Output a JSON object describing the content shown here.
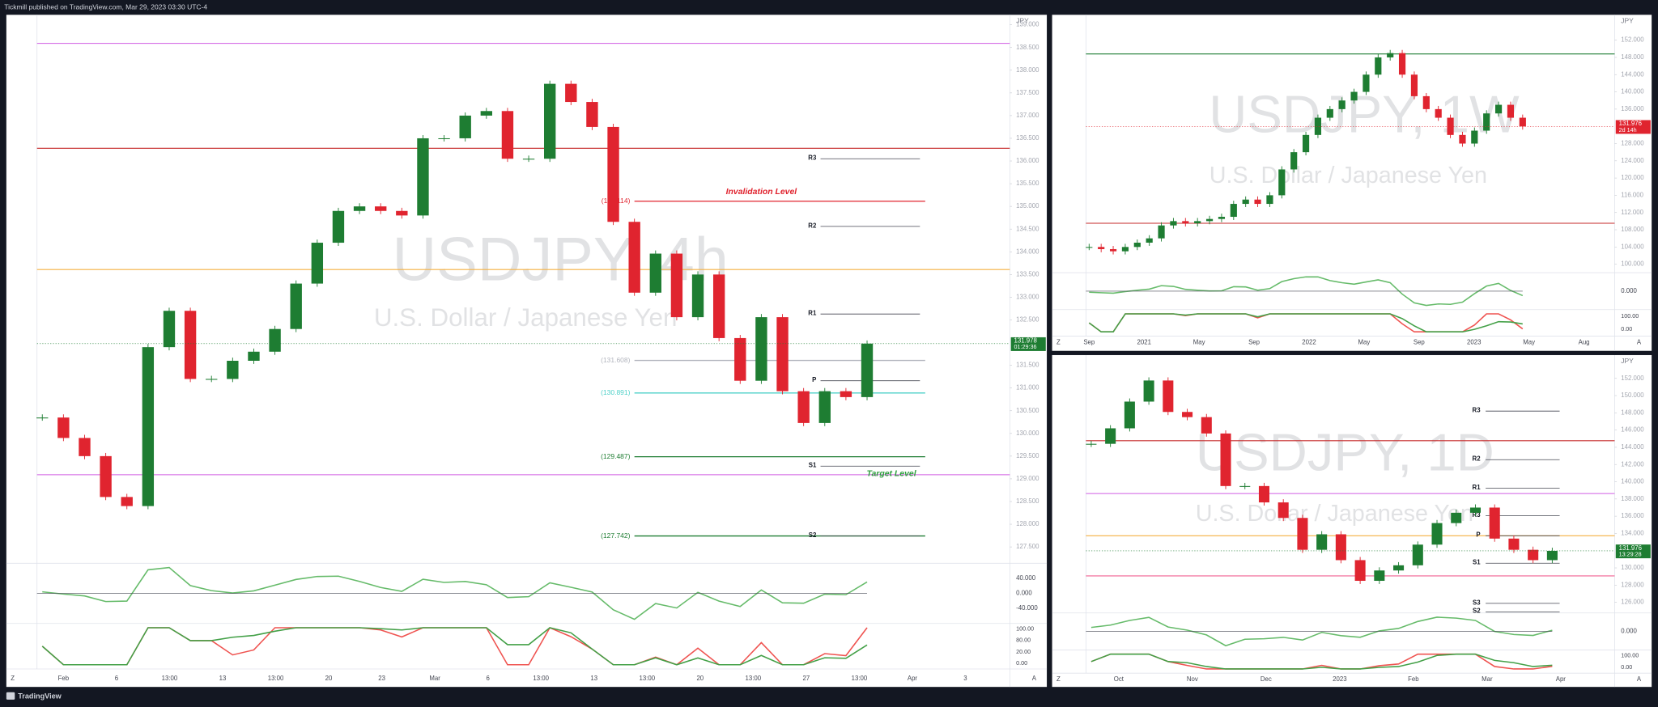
{
  "header": {
    "publisher": "Tickmill published on TradingView.com, Mar 29, 2023 03:30 UTC-4"
  },
  "footer": {
    "brand": "TradingView",
    "left_button": "Z",
    "right_button": "A"
  },
  "chart_data": [
    {
      "type": "candlestick",
      "title": "USDJPY, 4h",
      "subtitle": "U.S. Dollar / Japanese Yen",
      "currency": "JPY",
      "up_color": "#1e7d32",
      "down_color": "#e0242f",
      "closes": [
        130.35,
        129.9,
        129.5,
        128.6,
        128.4,
        131.9,
        132.7,
        131.2,
        131.2,
        131.6,
        131.8,
        132.3,
        133.3,
        134.2,
        134.9,
        135.0,
        134.9,
        134.8,
        136.5,
        136.5,
        137.0,
        137.1,
        136.05,
        136.05,
        137.7,
        137.3,
        136.75,
        134.66,
        133.1,
        133.96,
        132.56,
        133.5,
        132.1,
        131.16,
        132.56,
        130.93,
        130.23,
        130.93,
        130.8,
        131.978
      ],
      "ylim": [
        127.14,
        139.22
      ],
      "yticks": [
        {
          "value": 139,
          "label": "139.000"
        },
        {
          "value": 138.5,
          "label": "138.500"
        },
        {
          "value": 138,
          "label": "138.000"
        },
        {
          "value": 137.5,
          "label": "137.500"
        },
        {
          "value": 137,
          "label": "137.000"
        },
        {
          "value": 136.5,
          "label": "136.500"
        },
        {
          "value": 136,
          "label": "136.000"
        },
        {
          "value": 135.5,
          "label": "135.500"
        },
        {
          "value": 135,
          "label": "135.000"
        },
        {
          "value": 134.5,
          "label": "134.500"
        },
        {
          "value": 134,
          "label": "134.000"
        },
        {
          "value": 133.5,
          "label": "133.500"
        },
        {
          "value": 133,
          "label": "133.000"
        },
        {
          "value": 132.5,
          "label": "132.500"
        },
        {
          "value": 131.5,
          "label": "131.500"
        },
        {
          "value": 131,
          "label": "131.000"
        },
        {
          "value": 130.5,
          "label": "130.500"
        },
        {
          "value": 130,
          "label": "130.000"
        },
        {
          "value": 129.5,
          "label": "129.500"
        },
        {
          "value": 129,
          "label": "129.000"
        },
        {
          "value": 128.5,
          "label": "128.500"
        },
        {
          "value": 128,
          "label": "128.000"
        },
        {
          "value": 127.5,
          "label": "127.500"
        }
      ],
      "time_labels": [
        "Feb",
        "6",
        "13:00",
        "13",
        "13:00",
        "20",
        "23",
        "Mar",
        "6",
        "13:00",
        "13",
        "13:00",
        "20",
        "13:00",
        "27",
        "13:00",
        "Apr",
        "3"
      ],
      "last_price": {
        "value": 131.978,
        "label": "131.978"
      },
      "last_price_color": "#1e7d32",
      "countdown": "01:29:36",
      "levels": [
        {
          "value": 135.114,
          "label": "(135.114)",
          "color": "#e0242f"
        },
        {
          "value": 131.608,
          "label": "(131.608)",
          "color": "#b2b5be"
        },
        {
          "value": 130.891,
          "label": "(130.891)",
          "color": "#4dd0c8"
        },
        {
          "value": 129.487,
          "label": "(129.487)",
          "color": "#1e7d32"
        },
        {
          "value": 127.742,
          "label": "(127.742)",
          "color": "#1e7d32"
        }
      ],
      "pivots": [
        {
          "value": 136.05,
          "label": "R3"
        },
        {
          "value": 134.56,
          "label": "R2"
        },
        {
          "value": 132.63,
          "label": "R1"
        },
        {
          "value": 131.16,
          "label": "P"
        },
        {
          "value": 129.28,
          "label": "S1"
        },
        {
          "value": 127.74,
          "label": "S2"
        }
      ],
      "lines": [
        {
          "value": 138.59,
          "color": "#d05ce3"
        },
        {
          "value": 136.28,
          "color": "#c62828"
        },
        {
          "value": 133.61,
          "color": "#f5b041"
        },
        {
          "value": 129.09,
          "color": "#d05ce3"
        }
      ],
      "annotations": [
        {
          "text": "Invalidation Level",
          "color": "#e0242f",
          "value": 135.114
        },
        {
          "text": "Target Level",
          "color": "#2e9e3e",
          "value": 128.9
        }
      ],
      "indicator1_labels": [
        "40.000",
        "0.000",
        "-40.000"
      ],
      "indicator2_labels": [
        "100.00",
        "80.00",
        "20.00",
        "0.00"
      ]
    },
    {
      "type": "candlestick",
      "title": "USDJPY, 1W",
      "subtitle": "U.S. Dollar / Japanese Yen",
      "currency": "JPY",
      "up_color": "#1e7d32",
      "down_color": "#e0242f",
      "closes": [
        104,
        103.5,
        103,
        104,
        105,
        106,
        109,
        110,
        109.5,
        110,
        110.5,
        111,
        114,
        115,
        114,
        116,
        122,
        126,
        130,
        134,
        136,
        138,
        140,
        144,
        148,
        149,
        144,
        139,
        136,
        134,
        130,
        128,
        131,
        135,
        137,
        134,
        131.976
      ],
      "ylim": [
        98.04,
        157.89
      ],
      "yticks": [
        {
          "value": 152,
          "label": "152.000"
        },
        {
          "value": 148,
          "label": "148.000"
        },
        {
          "value": 144,
          "label": "144.000"
        },
        {
          "value": 140,
          "label": "140.000"
        },
        {
          "value": 136,
          "label": "136.000"
        },
        {
          "value": 128,
          "label": "128.000"
        },
        {
          "value": 124,
          "label": "124.000"
        },
        {
          "value": 120,
          "label": "120.000"
        },
        {
          "value": 116,
          "label": "116.000"
        },
        {
          "value": 112,
          "label": "112.000"
        },
        {
          "value": 108,
          "label": "108.000"
        },
        {
          "value": 104,
          "label": "104.000"
        },
        {
          "value": 100,
          "label": "100.000"
        }
      ],
      "time_labels": [
        "Sep",
        "2021",
        "May",
        "Sep",
        "2022",
        "May",
        "Sep",
        "2023",
        "May",
        "Aug"
      ],
      "last_price": {
        "value": 131.976,
        "label": "131.976"
      },
      "last_price_color": "#e0242f",
      "countdown": "2d 14h",
      "levels": [],
      "pivots": [],
      "lines": [
        {
          "value": 148.8,
          "color": "#1e7d32"
        },
        {
          "value": 109.5,
          "color": "#c62828"
        }
      ],
      "annotations": [],
      "indicator1_labels": [
        "0.000"
      ],
      "indicator2_labels": [
        "100.00",
        "0.00"
      ]
    },
    {
      "type": "candlestick",
      "title": "USDJPY, 1D",
      "subtitle": "U.S. Dollar / Japanese Yen",
      "currency": "JPY",
      "up_color": "#1e7d32",
      "down_color": "#e0242f",
      "closes": [
        144.4,
        146.2,
        149.3,
        151.75,
        148.1,
        147.5,
        145.6,
        139.5,
        139.5,
        137.6,
        135.8,
        132.1,
        133.9,
        130.9,
        128.5,
        129.7,
        130.3,
        132.7,
        135.2,
        136.4,
        137.0,
        133.4,
        132.1,
        130.9,
        131.976
      ],
      "ylim": [
        124.77,
        154.7
      ],
      "yticks": [
        {
          "value": 152,
          "label": "152.000"
        },
        {
          "value": 150,
          "label": "150.000"
        },
        {
          "value": 148,
          "label": "148.000"
        },
        {
          "value": 146,
          "label": "146.000"
        },
        {
          "value": 144,
          "label": "144.000"
        },
        {
          "value": 142,
          "label": "142.000"
        },
        {
          "value": 140,
          "label": "140.000"
        },
        {
          "value": 138,
          "label": "138.000"
        },
        {
          "value": 136,
          "label": "136.000"
        },
        {
          "value": 134,
          "label": "134.000"
        },
        {
          "value": 130,
          "label": "130.000"
        },
        {
          "value": 128,
          "label": "128.000"
        },
        {
          "value": 126,
          "label": "126.000"
        }
      ],
      "time_labels": [
        "Oct",
        "Nov",
        "Dec",
        "2023",
        "Feb",
        "Mar",
        "Apr"
      ],
      "last_price": {
        "value": 131.976,
        "label": "131.976"
      },
      "last_price_color": "#1e7d32",
      "countdown": "13:29:28",
      "levels": [],
      "pivots": [
        {
          "value": 148.2,
          "label": "R3"
        },
        {
          "value": 142.56,
          "label": "R2"
        },
        {
          "value": 139.25,
          "label": "R1"
        },
        {
          "value": 136.06,
          "label": "R3"
        },
        {
          "value": 133.73,
          "label": "P"
        },
        {
          "value": 130.54,
          "label": "S1"
        },
        {
          "value": 125.88,
          "label": "S3"
        },
        {
          "value": 124.9,
          "label": "S2"
        }
      ],
      "lines": [
        {
          "value": 144.76,
          "color": "#c62828"
        },
        {
          "value": 138.63,
          "color": "#d05ce3"
        },
        {
          "value": 133.73,
          "color": "#f5b041"
        },
        {
          "value": 129.07,
          "color": "#f06292"
        }
      ],
      "annotations": [],
      "indicator1_labels": [
        "0.000"
      ],
      "indicator2_labels": [
        "100.00",
        "0.00"
      ]
    }
  ]
}
